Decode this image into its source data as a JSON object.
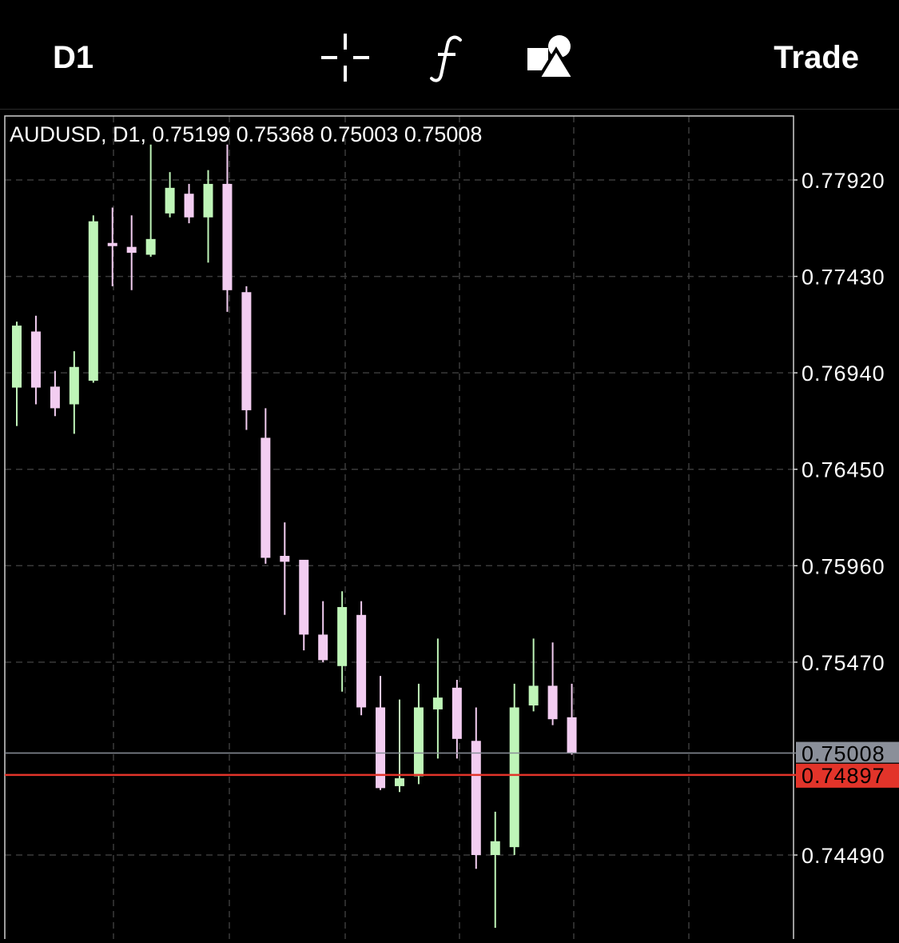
{
  "toolbar": {
    "timeframe_label": "D1",
    "crosshair_icon": "crosshair-icon",
    "indicators_icon": "function-f-icon",
    "objects_icon": "shapes-icon",
    "trade_label": "Trade"
  },
  "chart": {
    "header": "AUDUSD, D1, 0.75199 0.75368 0.75003 0.75008",
    "axis_labels": [
      "0.77920",
      "0.77430",
      "0.76940",
      "0.76450",
      "0.75960",
      "0.75470",
      "0.74490"
    ],
    "colors": {
      "bull": "#bff5b8",
      "bear": "#f3cdf1",
      "background": "#000000",
      "grid": "#3a3a3a",
      "bid_line": "#8a8f99",
      "ask_line": "#e2342a"
    }
  },
  "chart_data": {
    "type": "candlestick",
    "symbol": "AUDUSD",
    "timeframe": "D1",
    "ylim": [
      0.741,
      0.7805
    ],
    "bid": 0.75008,
    "ask": 0.74897,
    "bid_label": "0.75008",
    "ask_label": "0.74897",
    "candles": [
      {
        "o": 0.76865,
        "h": 0.772,
        "l": 0.7667,
        "c": 0.7718
      },
      {
        "o": 0.7715,
        "h": 0.7723,
        "l": 0.7678,
        "c": 0.76865
      },
      {
        "o": 0.7687,
        "h": 0.7695,
        "l": 0.7672,
        "c": 0.7676
      },
      {
        "o": 0.7678,
        "h": 0.7705,
        "l": 0.7663,
        "c": 0.7697
      },
      {
        "o": 0.769,
        "h": 0.7774,
        "l": 0.7689,
        "c": 0.7771
      },
      {
        "o": 0.776,
        "h": 0.7778,
        "l": 0.7738,
        "c": 0.7759
      },
      {
        "o": 0.7758,
        "h": 0.7774,
        "l": 0.7736,
        "c": 0.7755
      },
      {
        "o": 0.7754,
        "h": 0.781,
        "l": 0.7753,
        "c": 0.7762
      },
      {
        "o": 0.7775,
        "h": 0.7796,
        "l": 0.7773,
        "c": 0.7788
      },
      {
        "o": 0.7785,
        "h": 0.779,
        "l": 0.777,
        "c": 0.7773
      },
      {
        "o": 0.7773,
        "h": 0.7797,
        "l": 0.775,
        "c": 0.779
      },
      {
        "o": 0.779,
        "h": 0.781,
        "l": 0.7725,
        "c": 0.7736
      },
      {
        "o": 0.7735,
        "h": 0.7738,
        "l": 0.7665,
        "c": 0.7675
      },
      {
        "o": 0.7661,
        "h": 0.7676,
        "l": 0.7597,
        "c": 0.76
      },
      {
        "o": 0.7601,
        "h": 0.7618,
        "l": 0.7571,
        "c": 0.7598
      },
      {
        "o": 0.7599,
        "h": 0.7598,
        "l": 0.7553,
        "c": 0.7561
      },
      {
        "o": 0.7561,
        "h": 0.7578,
        "l": 0.7547,
        "c": 0.7548
      },
      {
        "o": 0.7545,
        "h": 0.7583,
        "l": 0.7532,
        "c": 0.7575
      },
      {
        "o": 0.7571,
        "h": 0.7578,
        "l": 0.752,
        "c": 0.7524
      },
      {
        "o": 0.7524,
        "h": 0.754,
        "l": 0.7482,
        "c": 0.7483
      },
      {
        "o": 0.7484,
        "h": 0.7528,
        "l": 0.7481,
        "c": 0.7488
      },
      {
        "o": 0.7489,
        "h": 0.7536,
        "l": 0.7485,
        "c": 0.7524
      },
      {
        "o": 0.7523,
        "h": 0.7559,
        "l": 0.7498,
        "c": 0.7529
      },
      {
        "o": 0.7534,
        "h": 0.7538,
        "l": 0.7498,
        "c": 0.7508
      },
      {
        "o": 0.7507,
        "h": 0.7524,
        "l": 0.7442,
        "c": 0.7449
      },
      {
        "o": 0.7449,
        "h": 0.7471,
        "l": 0.7412,
        "c": 0.7456
      },
      {
        "o": 0.7453,
        "h": 0.7536,
        "l": 0.7449,
        "c": 0.7524
      },
      {
        "o": 0.7525,
        "h": 0.7559,
        "l": 0.7522,
        "c": 0.7535
      },
      {
        "o": 0.7535,
        "h": 0.7557,
        "l": 0.7515,
        "c": 0.7518
      },
      {
        "o": 0.7519,
        "h": 0.7536,
        "l": 0.75,
        "c": 0.75008
      }
    ]
  }
}
